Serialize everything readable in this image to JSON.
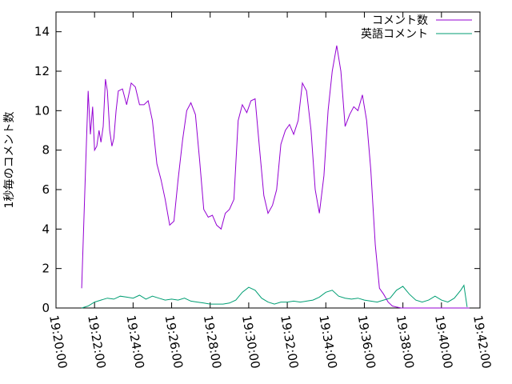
{
  "chart_data": {
    "type": "line",
    "title": "",
    "xlabel": "",
    "ylabel": "1秒毎のコメント数",
    "xlim": [
      "19:20:00",
      "19:42:00"
    ],
    "ylim": [
      0,
      15
    ],
    "x_ticks": [
      "19:20:00",
      "19:22:00",
      "19:24:00",
      "19:26:00",
      "19:28:00",
      "19:30:00",
      "19:32:00",
      "19:34:00",
      "19:36:00",
      "19:38:00",
      "19:40:00",
      "19:42:00"
    ],
    "y_ticks": [
      "0",
      "2",
      "4",
      "6",
      "8",
      "10",
      "12",
      "14"
    ],
    "grid": false,
    "legend_position": "top-right",
    "series": [
      {
        "name": "コメント数",
        "color": "#9400d3",
        "x": [
          "19:21:20",
          "19:21:32",
          "19:21:40",
          "19:21:47",
          "19:21:54",
          "19:22:00",
          "19:22:07",
          "19:22:14",
          "19:22:20",
          "19:22:27",
          "19:22:34",
          "19:22:40",
          "19:22:47",
          "19:22:54",
          "19:23:00",
          "19:23:07",
          "19:23:14",
          "19:23:27",
          "19:23:40",
          "19:23:54",
          "19:24:07",
          "19:24:20",
          "19:24:34",
          "19:24:47",
          "19:25:00",
          "19:25:14",
          "19:25:27",
          "19:25:40",
          "19:25:54",
          "19:26:07",
          "19:26:20",
          "19:26:34",
          "19:26:47",
          "19:27:00",
          "19:27:14",
          "19:27:27",
          "19:27:40",
          "19:27:54",
          "19:28:07",
          "19:28:20",
          "19:28:34",
          "19:28:47",
          "19:29:00",
          "19:29:14",
          "19:29:27",
          "19:29:40",
          "19:29:54",
          "19:30:07",
          "19:30:20",
          "19:30:34",
          "19:30:47",
          "19:31:00",
          "19:31:14",
          "19:31:27",
          "19:31:40",
          "19:31:54",
          "19:32:07",
          "19:32:20",
          "19:32:34",
          "19:32:47",
          "19:33:00",
          "19:33:14",
          "19:33:27",
          "19:33:40",
          "19:33:54",
          "19:34:07",
          "19:34:20",
          "19:34:34",
          "19:34:47",
          "19:35:00",
          "19:35:14",
          "19:35:27",
          "19:35:40",
          "19:35:54",
          "19:36:07",
          "19:36:20",
          "19:36:34",
          "19:36:47",
          "19:37:00",
          "19:37:14",
          "19:37:27",
          "19:37:40",
          "19:37:54",
          "19:38:07",
          "19:38:20",
          "19:38:34",
          "19:38:47",
          "19:39:00",
          "19:39:14",
          "19:39:27",
          "19:39:40",
          "19:39:54",
          "19:40:00",
          "19:40:07",
          "19:40:20",
          "19:40:34",
          "19:40:47",
          "19:41:00",
          "19:41:07",
          "19:41:14",
          "19:41:20",
          "19:41:27"
        ],
        "y": [
          1.0,
          7.0,
          11.0,
          8.8,
          10.2,
          8.0,
          8.2,
          9.0,
          8.4,
          9.2,
          11.6,
          11.0,
          9.0,
          8.2,
          8.6,
          10.0,
          11.0,
          11.1,
          10.3,
          11.4,
          11.2,
          10.3,
          10.3,
          10.5,
          9.5,
          7.3,
          6.5,
          5.5,
          4.2,
          4.4,
          6.5,
          8.5,
          10.0,
          10.4,
          9.8,
          7.5,
          5.0,
          4.6,
          4.7,
          4.2,
          4.0,
          4.8,
          5.0,
          5.5,
          9.5,
          10.3,
          9.9,
          10.5,
          10.6,
          8.0,
          5.7,
          4.8,
          5.2,
          6.0,
          8.3,
          9.0,
          9.3,
          8.8,
          9.5,
          11.4,
          11.0,
          9.0,
          6.0,
          4.8,
          6.7,
          10.0,
          12.0,
          13.3,
          12.0,
          9.2,
          9.8,
          10.2,
          10.0,
          10.8,
          9.5,
          7.0,
          3.2,
          1.0,
          0.7,
          0.3,
          0.1,
          0.05,
          0.0,
          0.0,
          0.0,
          0.0,
          0.0,
          0.0,
          0.0,
          0.0,
          0.0,
          0.0,
          0.0,
          0.0,
          0.0,
          0.0,
          0.0,
          0.0,
          0.0,
          0.0,
          0.0,
          0.0
        ]
      },
      {
        "name": "英語コメント",
        "color": "#009e73",
        "x": [
          "19:21:20",
          "19:21:40",
          "19:22:00",
          "19:22:20",
          "19:22:40",
          "19:23:00",
          "19:23:20",
          "19:23:40",
          "19:24:00",
          "19:24:20",
          "19:24:40",
          "19:25:00",
          "19:25:20",
          "19:25:40",
          "19:26:00",
          "19:26:20",
          "19:26:40",
          "19:27:00",
          "19:27:20",
          "19:27:40",
          "19:28:00",
          "19:28:20",
          "19:28:40",
          "19:29:00",
          "19:29:20",
          "19:29:40",
          "19:30:00",
          "19:30:20",
          "19:30:40",
          "19:31:00",
          "19:31:20",
          "19:31:40",
          "19:32:00",
          "19:32:20",
          "19:32:40",
          "19:33:00",
          "19:33:20",
          "19:33:40",
          "19:34:00",
          "19:34:20",
          "19:34:40",
          "19:35:00",
          "19:35:20",
          "19:35:40",
          "19:36:00",
          "19:36:20",
          "19:36:40",
          "19:37:00",
          "19:37:20",
          "19:37:40",
          "19:38:00",
          "19:38:20",
          "19:38:40",
          "19:39:00",
          "19:39:20",
          "19:39:40",
          "19:40:00",
          "19:40:20",
          "19:40:40",
          "19:41:00",
          "19:41:10",
          "19:41:20"
        ],
        "y": [
          0.0,
          0.1,
          0.3,
          0.4,
          0.5,
          0.45,
          0.6,
          0.55,
          0.5,
          0.65,
          0.45,
          0.6,
          0.5,
          0.4,
          0.45,
          0.4,
          0.5,
          0.35,
          0.3,
          0.25,
          0.2,
          0.2,
          0.2,
          0.25,
          0.4,
          0.8,
          1.05,
          0.9,
          0.5,
          0.3,
          0.2,
          0.3,
          0.3,
          0.35,
          0.3,
          0.35,
          0.4,
          0.55,
          0.8,
          0.9,
          0.6,
          0.5,
          0.45,
          0.5,
          0.4,
          0.35,
          0.3,
          0.4,
          0.5,
          0.9,
          1.1,
          0.7,
          0.4,
          0.3,
          0.4,
          0.6,
          0.4,
          0.3,
          0.5,
          0.9,
          1.15,
          0.05
        ]
      }
    ]
  }
}
